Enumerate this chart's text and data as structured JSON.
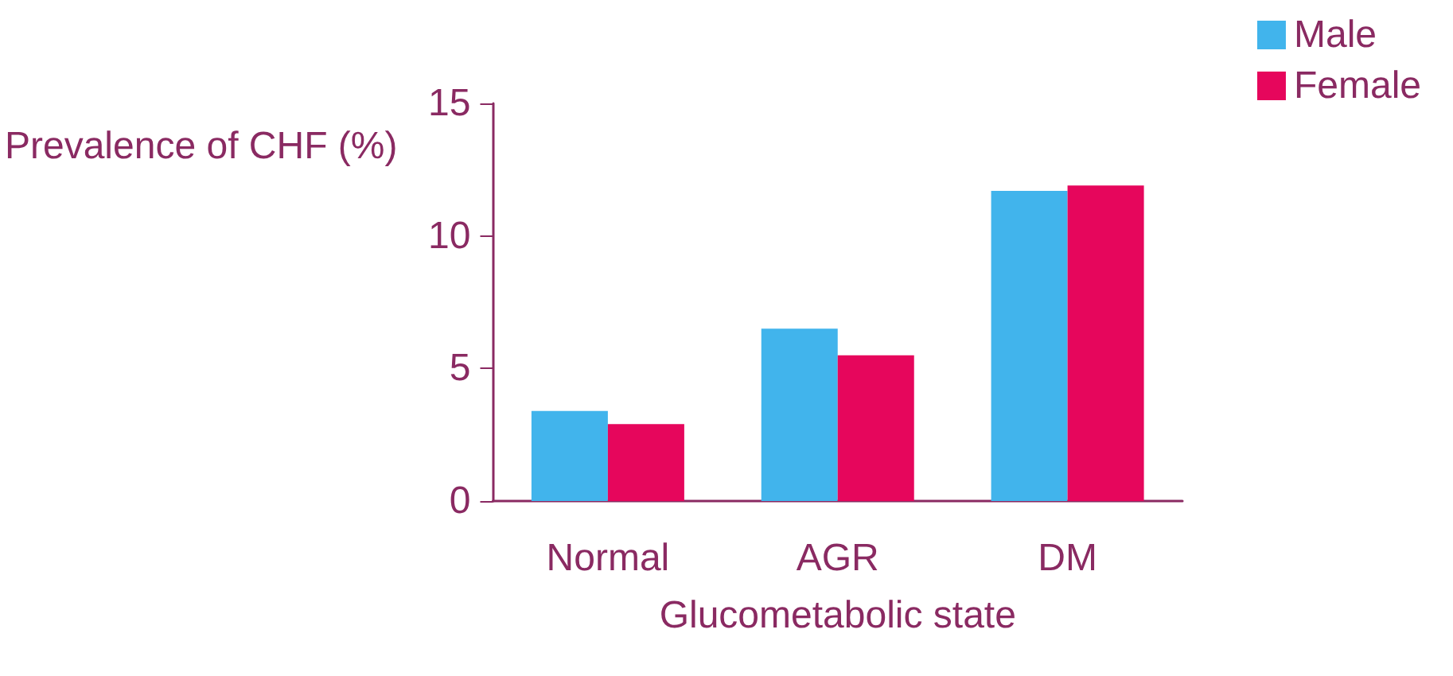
{
  "chart_data": {
    "type": "bar",
    "xlabel": "Glucometabolic state",
    "ylabel": "Prevalence of CHF (%)",
    "categories": [
      "Normal",
      "AGR",
      "DM"
    ],
    "series": [
      {
        "name": "Male",
        "color": "#41b4ec",
        "values": [
          3.4,
          6.5,
          11.7
        ]
      },
      {
        "name": "Female",
        "color": "#e6065c",
        "values": [
          2.9,
          5.5,
          11.9
        ]
      }
    ],
    "ylim": [
      0,
      15
    ],
    "yticks": [
      0,
      5,
      10,
      15
    ],
    "grid": false,
    "legend": "top right"
  }
}
